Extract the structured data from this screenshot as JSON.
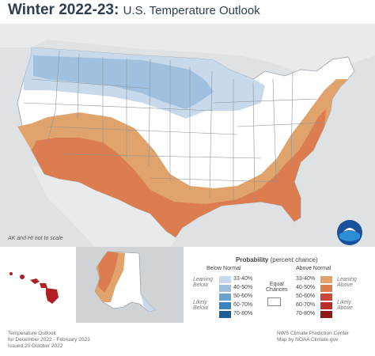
{
  "title": {
    "bold": "Winter 2022-23:",
    "subtitle": "U.S. Temperature Outlook"
  },
  "note": "AK and HI not to scale",
  "legend": {
    "heading": "Probability",
    "heading_suffix": "(percent chance)",
    "below_normal": "Below Normal",
    "above_normal": "Above Normal",
    "leaning_below": [
      "Leaning",
      "Below"
    ],
    "likely_below": [
      "Likely",
      "Below"
    ],
    "leaning_above": [
      "Leaning",
      "Above"
    ],
    "likely_above": [
      "Likely",
      "Above"
    ],
    "equal_chances": [
      "Equal",
      "Chances"
    ],
    "below_bins": [
      {
        "label": "33-40%",
        "color": "#c7d9ea"
      },
      {
        "label": "40-50%",
        "color": "#9fc0de"
      },
      {
        "label": "50-60%",
        "color": "#6aa3d0"
      },
      {
        "label": "60-70%",
        "color": "#3b84bf"
      },
      {
        "label": "70-80%",
        "color": "#1e5f99"
      }
    ],
    "above_bins": [
      {
        "label": "33-40%",
        "color": "#e0a36b"
      },
      {
        "label": "40-50%",
        "color": "#dc7d4f"
      },
      {
        "label": "50-60%",
        "color": "#c9473a"
      },
      {
        "label": "60-70%",
        "color": "#bd2b2b"
      },
      {
        "label": "70-80%",
        "color": "#8e1a1a"
      }
    ]
  },
  "footer_left": [
    "Temperature Outlook",
    "for December 2022 - February 2023",
    "Issued 20 October 2022"
  ],
  "footer_right": [
    "NWS Climate Prediction Center",
    "Map by NOAA Climate.gov"
  ],
  "colors": {
    "below_light": "#c7d9ea",
    "below_mid": "#9fc0de",
    "above_light": "#e0a36b",
    "above_mid": "#dc7d4f",
    "equal": "#ffffff",
    "hawaii": "#b11f24",
    "background": "#dfe2e5"
  }
}
